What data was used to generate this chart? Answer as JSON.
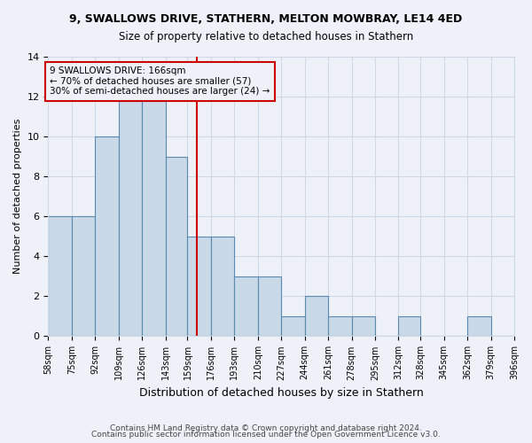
{
  "title_line1": "9, SWALLOWS DRIVE, STATHERN, MELTON MOWBRAY, LE14 4ED",
  "title_line2": "Size of property relative to detached houses in Stathern",
  "xlabel": "Distribution of detached houses by size in Stathern",
  "ylabel": "Number of detached properties",
  "bin_labels": [
    "58sqm",
    "75sqm",
    "92sqm",
    "109sqm",
    "126sqm",
    "143sqm",
    "159sqm",
    "176sqm",
    "193sqm",
    "210sqm",
    "227sqm",
    "244sqm",
    "261sqm",
    "278sqm",
    "295sqm",
    "312sqm",
    "328sqm",
    "345sqm",
    "362sqm",
    "379sqm",
    "396sqm"
  ],
  "bar_heights": [
    6,
    6,
    10,
    12,
    12,
    9,
    5,
    5,
    3,
    3,
    1,
    2,
    1,
    1,
    0,
    1,
    0,
    0,
    1,
    0
  ],
  "bin_edges": [
    58,
    75,
    92,
    109,
    126,
    143,
    159,
    176,
    193,
    210,
    227,
    244,
    261,
    278,
    295,
    312,
    328,
    345,
    362,
    379,
    396
  ],
  "bar_color": "#c9d9e8",
  "bar_edge_color": "#5a8ab0",
  "vline_x": 166,
  "vline_color": "#cc0000",
  "annotation_text": "9 SWALLOWS DRIVE: 166sqm\n← 70% of detached houses are smaller (57)\n30% of semi-detached houses are larger (24) →",
  "annotation_box_color": "#cc0000",
  "grid_color": "#d0d8e8",
  "background_color": "#eef2f8",
  "ylim": [
    0,
    14
  ],
  "yticks": [
    0,
    2,
    4,
    6,
    8,
    10,
    12,
    14
  ],
  "footer_line1": "Contains HM Land Registry data © Crown copyright and database right 2024.",
  "footer_line2": "Contains public sector information licensed under the Open Government Licence v3.0."
}
